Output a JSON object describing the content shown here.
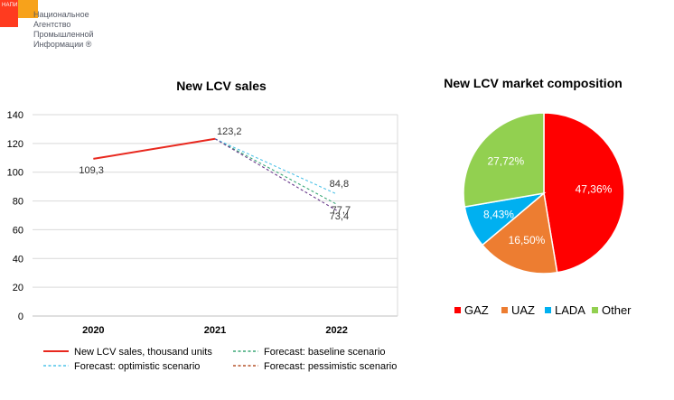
{
  "logo": {
    "abbr": "НАПИ",
    "lines": [
      "Национальное",
      "Агентство",
      "Промышленной",
      "Информации ®"
    ]
  },
  "chart_data": [
    {
      "type": "line",
      "title": "New LCV sales",
      "categories": [
        "2020",
        "2021",
        "2022"
      ],
      "ylim": [
        0,
        140
      ],
      "yticks": [
        0,
        20,
        40,
        60,
        80,
        100,
        120,
        140
      ],
      "grid": true,
      "legend": "bottom",
      "series": [
        {
          "name": "New LCV sales, thousand units",
          "values": [
            109.3,
            123.2,
            null
          ],
          "color": "#e8281e",
          "dashed": false,
          "labels": [
            "109,3",
            "123,2",
            ""
          ]
        },
        {
          "name": "Forecast: baseline scenario",
          "values": [
            null,
            123.2,
            77.7
          ],
          "color": "#3aa776",
          "dashed": true,
          "labels": [
            "",
            "",
            "77,7"
          ]
        },
        {
          "name": "Forecast: optimistic scenario",
          "values": [
            null,
            123.2,
            84.8
          ],
          "color": "#4fc3e8",
          "dashed": true,
          "labels": [
            "",
            "",
            "84,8"
          ]
        },
        {
          "name": "Forecast: pessimistic scenario",
          "values": [
            null,
            123.2,
            73.4
          ],
          "color": "#6a3b8c",
          "dashed": true,
          "labels": [
            "",
            "",
            "73,4"
          ]
        }
      ],
      "legend_colors": {
        "Forecast: pessimistic scenario": "#b5532a"
      }
    },
    {
      "type": "pie",
      "title": "New LCV market composition",
      "legend": "bottom",
      "slices": [
        {
          "name": "GAZ",
          "value": 47.36,
          "label": "47,36%",
          "color": "#ff0000"
        },
        {
          "name": "UAZ",
          "value": 16.5,
          "label": "16,50%",
          "color": "#ed7d31"
        },
        {
          "name": "LADA",
          "value": 8.43,
          "label": "8,43%",
          "color": "#00b0f0"
        },
        {
          "name": "Other",
          "value": 27.72,
          "label": "27,72%",
          "color": "#92d050"
        }
      ]
    }
  ]
}
